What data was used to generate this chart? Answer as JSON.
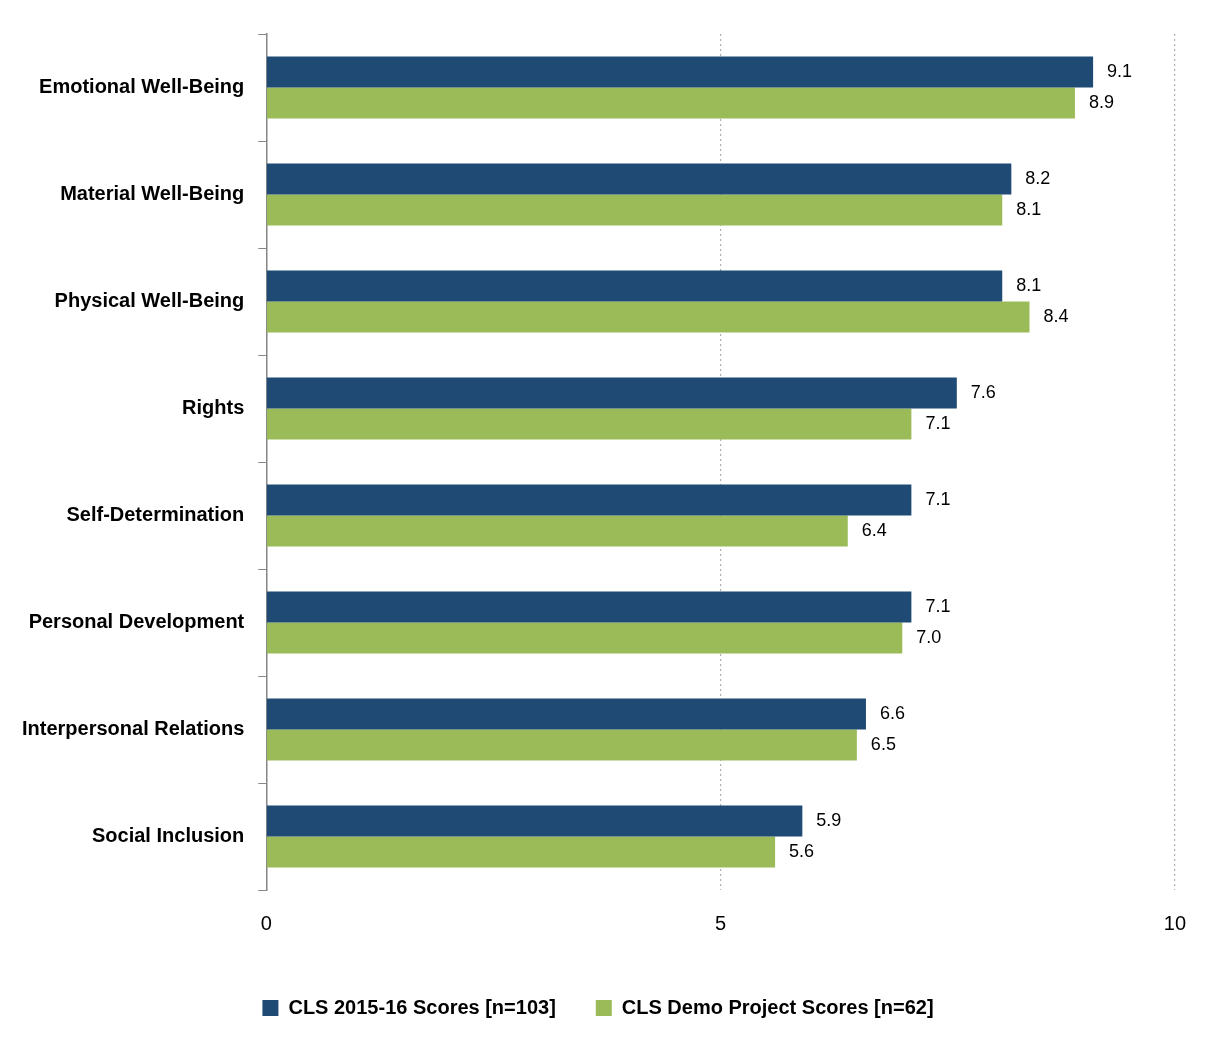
{
  "chart_data": {
    "type": "bar",
    "orientation": "horizontal",
    "categories": [
      "Emotional Well-Being",
      "Material Well-Being",
      "Physical Well-Being",
      "Rights",
      "Self-Determination",
      "Personal Development",
      "Interpersonal Relations",
      "Social Inclusion"
    ],
    "series": [
      {
        "name": "CLS 2015-16 Scores [n=103]",
        "color": "#1f4a73",
        "values": [
          9.1,
          8.2,
          8.1,
          7.6,
          7.1,
          7.1,
          6.6,
          5.9
        ],
        "value_labels": [
          "9.1",
          "8.2",
          "8.1",
          "7.6",
          "7.1",
          "7.1",
          "6.6",
          "5.9"
        ]
      },
      {
        "name": "CLS Demo Project Scores [n=62]",
        "color": "#9bbb59",
        "values": [
          8.9,
          8.1,
          8.4,
          7.1,
          6.4,
          7.0,
          6.5,
          5.6
        ],
        "value_labels": [
          "8.9",
          "8.1",
          "8.4",
          "7.1",
          "6.4",
          "7.0",
          "6.5",
          "5.6"
        ]
      }
    ],
    "xlim": [
      0,
      10
    ],
    "xticks": [
      0,
      5,
      10
    ],
    "grid": "x",
    "legend": "bottom"
  }
}
